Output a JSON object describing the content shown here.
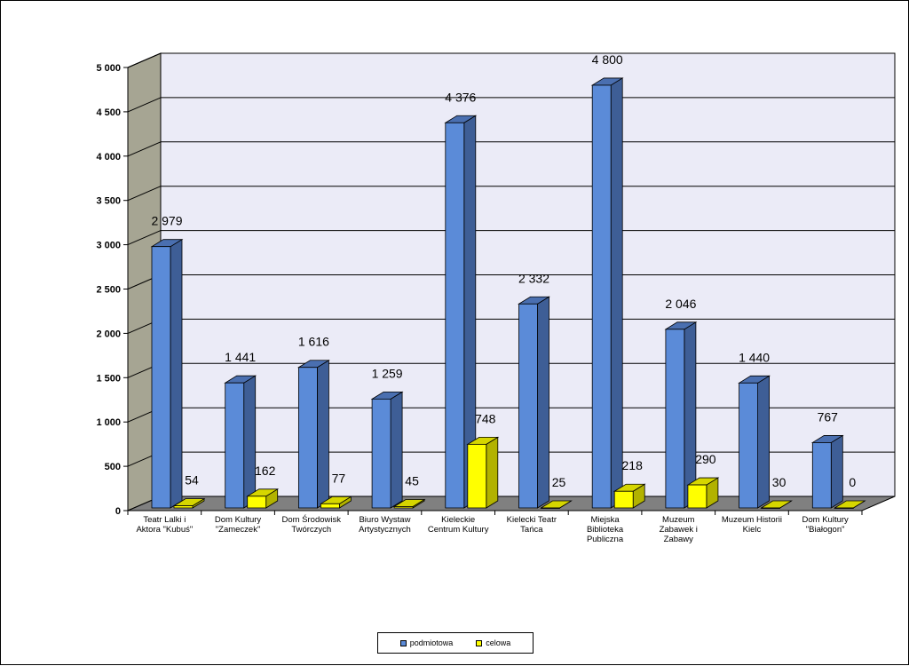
{
  "chart_data": {
    "type": "bar",
    "title": "",
    "xlabel": "",
    "ylabel": "",
    "ylim": [
      0,
      5000
    ],
    "yticks": [
      "0",
      "500",
      "1 000",
      "1 500",
      "2 000",
      "2 500",
      "3 000",
      "3 500",
      "4 000",
      "4 500",
      "5 000"
    ],
    "grid": true,
    "legend_position": "bottom",
    "categories": [
      [
        "Teatr Lalki i",
        "Aktora \"Kubuś\""
      ],
      [
        "Dom Kultury",
        "\"Zameczek\""
      ],
      [
        "Dom  Środowisk",
        "Twórczych"
      ],
      [
        "Biuro Wystaw",
        "Artystycznych"
      ],
      [
        "Kieleckie",
        "Centrum Kultury"
      ],
      [
        "Kielecki Teatr",
        "Tańca"
      ],
      [
        "Miejska",
        "Biblioteka",
        "Publiczna"
      ],
      [
        "Muzeum",
        "Zabawek i",
        "Zabawy"
      ],
      [
        "Muzeum Historii",
        "Kielc"
      ],
      [
        "Dom Kultury",
        "\"Białogon\""
      ]
    ],
    "series": [
      {
        "name": "podmiotowa",
        "color": "#5b8bd8",
        "values": [
          2979,
          1441,
          1616,
          1259,
          4376,
          2332,
          4800,
          2046,
          1440,
          767
        ],
        "labels": [
          "2 979",
          "1 441",
          "1 616",
          "1 259",
          "4 376",
          "2 332",
          "4 800",
          "2 046",
          "1 440",
          "767"
        ]
      },
      {
        "name": "celowa",
        "color": "#ffff00",
        "values": [
          54,
          162,
          77,
          45,
          748,
          25,
          218,
          290,
          30,
          0
        ],
        "labels": [
          "54",
          "162",
          "77",
          "45",
          "748",
          "25",
          "218",
          "290",
          "30",
          "0"
        ]
      }
    ]
  },
  "legend": {
    "items": [
      "podmiotowa",
      "celowa"
    ]
  },
  "colors": {
    "wall": "#ebebf7",
    "side_wall": "#a6a593",
    "floor": "#808080",
    "blue_side": "#3e5e96",
    "blue_top": "#4a6fb0",
    "yellow_side": "#b2b200",
    "yellow_top": "#d6d600"
  }
}
